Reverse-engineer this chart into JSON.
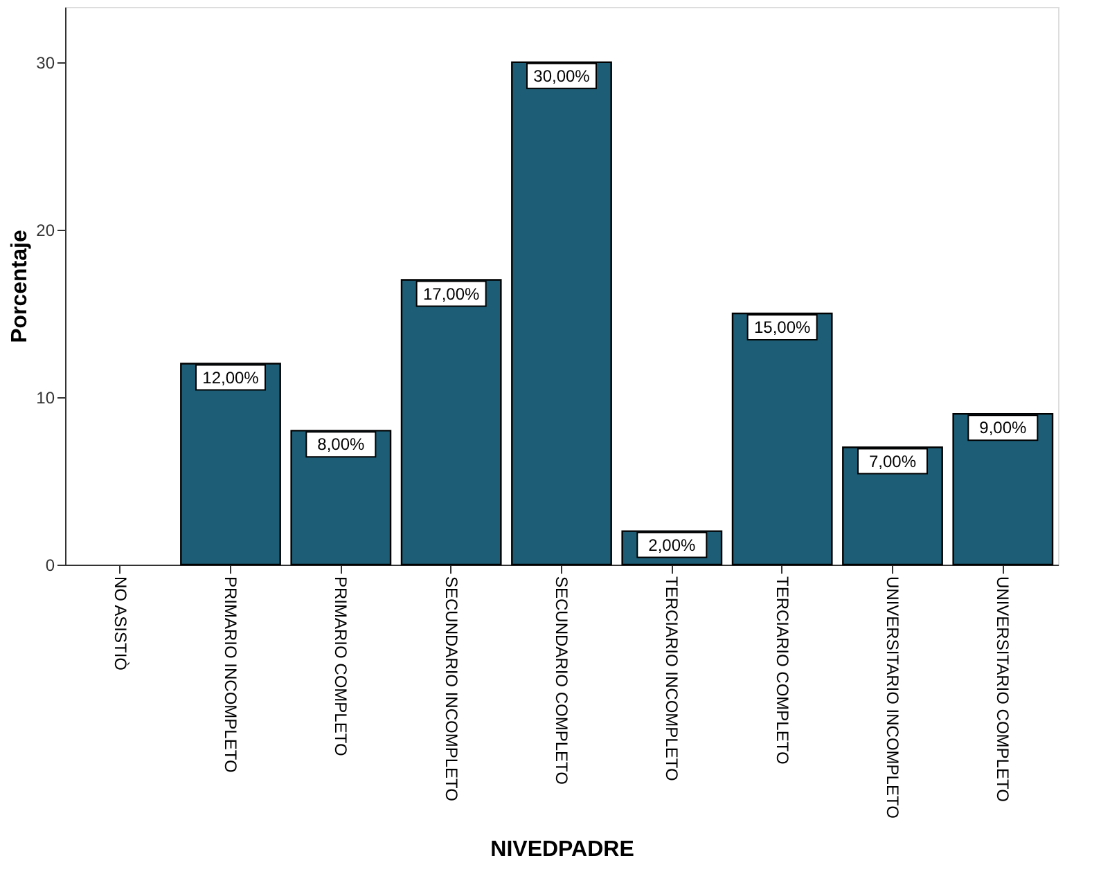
{
  "chart_data": {
    "type": "bar",
    "xlabel": "NIVEDPADRE",
    "ylabel": "Porcentaje",
    "categories": [
      "NO ASISTIÒ",
      "PRIMARIO INCOMPLETO",
      "PRIMARIO COMPLETO",
      "SECUNDARIO INCOMPLETO",
      "SECUNDARIO COMPLETO",
      "TERCIARIO INCOMPLETO",
      "TERCIARIO COMPLETO",
      "UNIVERSITARIO INCOMPLETO",
      "UNIVERSITARIO COMPLETO"
    ],
    "values": [
      0,
      12,
      8,
      17,
      30,
      2,
      15,
      7,
      9
    ],
    "value_labels": [
      null,
      "12,00%",
      "8,00%",
      "17,00%",
      "30,00%",
      "2,00%",
      "15,00%",
      "7,00%",
      "9,00%"
    ],
    "color": "#1d5e76",
    "ylim": [
      0,
      33.3
    ],
    "yticks": [
      0,
      10,
      20,
      30
    ],
    "grid": false
  }
}
